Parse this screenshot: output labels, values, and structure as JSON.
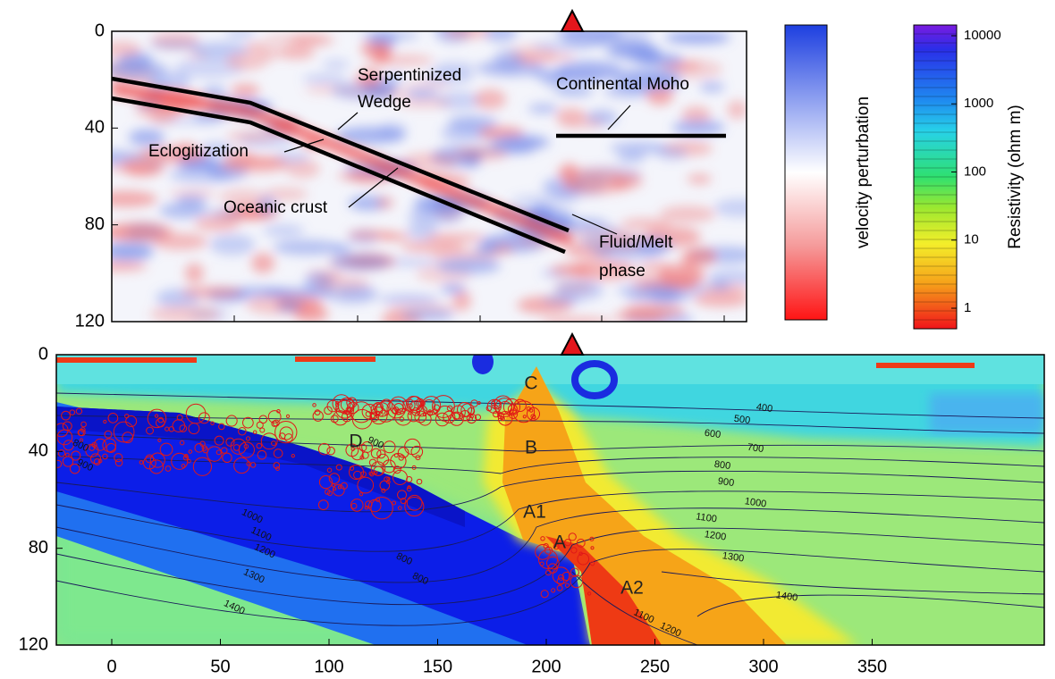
{
  "top_panel": {
    "yticks": [
      0,
      40,
      80,
      120
    ],
    "annotations": {
      "serpentinized": "Serpentinized",
      "wedge": "Wedge",
      "moho": "Continental Moho",
      "eclogitization": "Eclogitization",
      "oceanic_crust": "Oceanic crust",
      "fluid_melt": "Fluid/Melt",
      "phase": "phase"
    }
  },
  "velocity_colorbar": {
    "label": "velocity perturbation"
  },
  "resistivity_colorbar": {
    "label": "Resistivity (ohm m)",
    "ticks": [
      10000,
      1000,
      100,
      10,
      1
    ]
  },
  "bottom_panel": {
    "yticks": [
      0,
      40,
      80,
      120
    ],
    "xticks": [
      0,
      50,
      100,
      150,
      200,
      250,
      300,
      350
    ],
    "anomaly_labels": [
      "C",
      "B",
      "D",
      "A1",
      "A",
      "A2"
    ],
    "contour_labels": [
      400,
      500,
      600,
      700,
      800,
      900,
      1000,
      1100,
      1200,
      1300,
      1400,
      800,
      900,
      1000,
      1100,
      1200,
      1300,
      1400,
      800,
      800,
      900,
      1100,
      1200
    ]
  }
}
